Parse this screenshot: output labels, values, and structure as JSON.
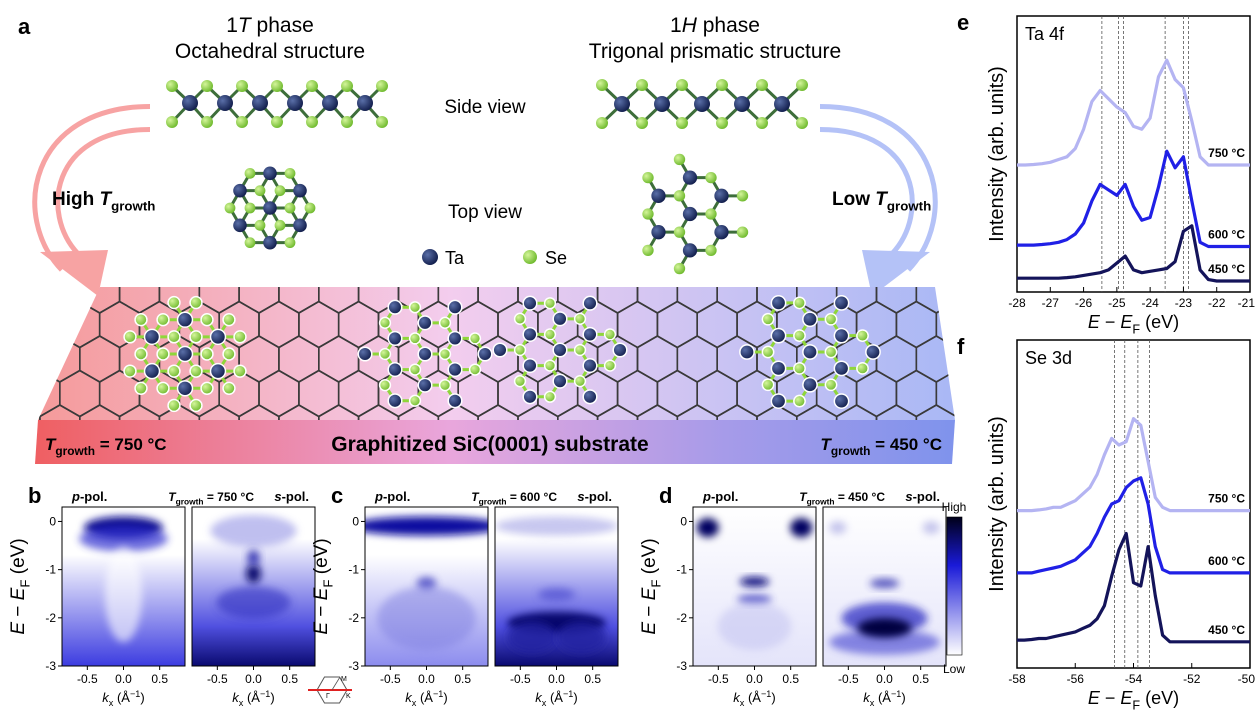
{
  "panel_a": {
    "label": "a",
    "phase_1T": {
      "number": "1",
      "symbol": "T",
      "suffix": " phase",
      "structure": "Octahedral structure"
    },
    "phase_1H": {
      "number": "1",
      "symbol": "H",
      "suffix": " phase",
      "structure": "Trigonal prismatic structure"
    },
    "side_view": "Side view",
    "top_view": "Top view",
    "legend": {
      "ta": "Ta",
      "se": "Se"
    },
    "high_growth": {
      "word": "High ",
      "symbol": "T",
      "subscript": "growth"
    },
    "low_growth": {
      "word": "Low ",
      "symbol": "T",
      "subscript": "growth"
    },
    "substrate": "Graphitized SiC(0001) substrate",
    "left_temperature": {
      "symbol": "T",
      "subscript": "growth",
      "value": " = 750 °C"
    },
    "right_temperature": {
      "symbol": "T",
      "subscript": "growth",
      "value": " = 450 °C"
    }
  },
  "arpes": {
    "y_label": {
      "symbol": "E",
      "minus": " − ",
      "ref": "E",
      "ref_sub": "F",
      "unit": " (eV)"
    },
    "x_label": {
      "symbol": "k",
      "sub": "x",
      "unit": " (Å",
      "sup": "−1",
      "close": ")"
    },
    "ylim": [
      -3,
      0.3
    ],
    "yticks": [
      0,
      -1,
      -2,
      -3
    ],
    "xlim": [
      -0.85,
      0.85
    ],
    "xticks": [
      -0.5,
      {
        "value": 0,
        "label": "0.0"
      },
      0.5
    ],
    "pol_p": {
      "symbol": "p",
      "rest": "-pol."
    },
    "pol_s": {
      "symbol": "s",
      "rest": "-pol."
    },
    "panels": [
      {
        "label": "b",
        "temperature": {
          "symbol": "T",
          "subscript": "growth",
          "value": " = 750 °C"
        }
      },
      {
        "label": "c",
        "temperature": {
          "symbol": "T",
          "subscript": "growth",
          "value": " = 600 °C"
        }
      },
      {
        "label": "d",
        "temperature": {
          "symbol": "T",
          "subscript": "growth",
          "value": " = 450 °C"
        }
      }
    ],
    "colorbar": {
      "high": "High",
      "low": "Low"
    },
    "brillouin_zone": {
      "m": "M",
      "gamma": "Γ",
      "k": "K"
    }
  },
  "chart_data": [
    {
      "type": "line",
      "label": "e",
      "title": "Ta 4f",
      "y_label": "Intensity (arb. units)",
      "x_label": {
        "symbol": "E",
        "minus": " − ",
        "ref": "E",
        "ref_sub": "F",
        "unit": " (eV)"
      },
      "xlim": [
        -28,
        -21
      ],
      "xticks": [
        -28,
        -27,
        -26,
        -25,
        -24,
        -23,
        -22,
        -21
      ],
      "ylim": [
        0,
        100
      ],
      "reference_lines": [
        -25.45,
        -24.95,
        -24.8,
        -23.55,
        -23.0,
        -22.85
      ],
      "x": [
        -28,
        -27.75,
        -27.5,
        -27.25,
        -27,
        -26.75,
        -26.5,
        -26.25,
        -26,
        -25.75,
        -25.5,
        -25.25,
        -25,
        -24.75,
        -24.5,
        -24.25,
        -24,
        -23.75,
        -23.5,
        -23.25,
        -23,
        -22.75,
        -22.5,
        -22.25,
        -22,
        -21.75,
        -21.5,
        -21.25,
        -21
      ],
      "series": [
        {
          "name": "750 °C",
          "color": "#b4b4f2",
          "values": [
            46,
            46,
            46.2,
            46.5,
            47,
            48,
            49,
            52,
            59,
            69,
            73,
            70,
            67,
            65,
            60,
            59,
            63,
            78,
            84,
            77,
            74,
            62,
            49,
            46,
            46,
            46,
            46,
            46,
            46
          ]
        },
        {
          "name": "600 °C",
          "color": "#2020e6",
          "values": [
            17,
            17,
            17,
            17.2,
            17.5,
            18,
            19,
            21,
            25,
            33,
            39,
            37,
            35,
            39,
            31,
            26,
            27,
            38,
            51,
            45,
            49,
            33,
            18,
            16.5,
            16.5,
            16.5,
            16.5,
            16.5,
            16.5
          ]
        },
        {
          "name": "450 °C",
          "color": "#14145a",
          "values": [
            5,
            5,
            5,
            5,
            5,
            5,
            5.2,
            5.5,
            6,
            6.5,
            7,
            8,
            10.5,
            13,
            8,
            7,
            7.5,
            8,
            8.5,
            11,
            22,
            24,
            8,
            4.5,
            4,
            4,
            4,
            4,
            4
          ]
        }
      ]
    },
    {
      "type": "line",
      "label": "f",
      "title": "Se 3d",
      "y_label": "Intensity (arb. units)",
      "x_label": {
        "symbol": "E",
        "minus": " − ",
        "ref": "E",
        "ref_sub": "F",
        "unit": " (eV)"
      },
      "xlim": [
        -58,
        -50
      ],
      "xticks": [
        -58,
        -56,
        -54,
        -52,
        -50
      ],
      "ylim": [
        0,
        100
      ],
      "reference_lines": [
        -54.65,
        -54.3,
        -53.85,
        -53.45
      ],
      "x": [
        -58,
        -57.75,
        -57.5,
        -57.25,
        -57,
        -56.75,
        -56.5,
        -56.25,
        -56,
        -55.75,
        -55.5,
        -55.25,
        -55,
        -54.75,
        -54.5,
        -54.25,
        -54,
        -53.75,
        -53.5,
        -53.25,
        -53,
        -52.75,
        -52.5,
        -52.25,
        -52,
        -51.75,
        -51.5,
        -51.25,
        -51,
        -50.75,
        -50.5,
        -50.25,
        -50
      ],
      "series": [
        {
          "name": "750 °C",
          "color": "#b4b4f2",
          "values": [
            48,
            48,
            48,
            48.2,
            48.5,
            49,
            49,
            50,
            51,
            53,
            55,
            59,
            65,
            70,
            68,
            69,
            76,
            74,
            63,
            52,
            49,
            48,
            48,
            48,
            48,
            48,
            48,
            48,
            48,
            48,
            48,
            48,
            48
          ]
        },
        {
          "name": "600 °C",
          "color": "#2020e6",
          "values": [
            29,
            29,
            29,
            29.5,
            30,
            30.5,
            31,
            32,
            33,
            35,
            37,
            41,
            46,
            50,
            51,
            55,
            57,
            58,
            50,
            37,
            30,
            29,
            29,
            29,
            29,
            29,
            29,
            29,
            29,
            29,
            29,
            29,
            29
          ]
        },
        {
          "name": "450 °C",
          "color": "#14145a",
          "values": [
            8.5,
            8.5,
            8.7,
            9,
            9,
            9.5,
            10,
            10.5,
            11,
            12,
            13,
            15,
            19,
            28,
            36,
            41,
            26,
            25,
            37,
            22,
            10,
            8,
            8,
            8,
            8,
            8,
            8,
            8,
            8,
            8,
            8,
            8,
            8
          ]
        }
      ]
    }
  ]
}
